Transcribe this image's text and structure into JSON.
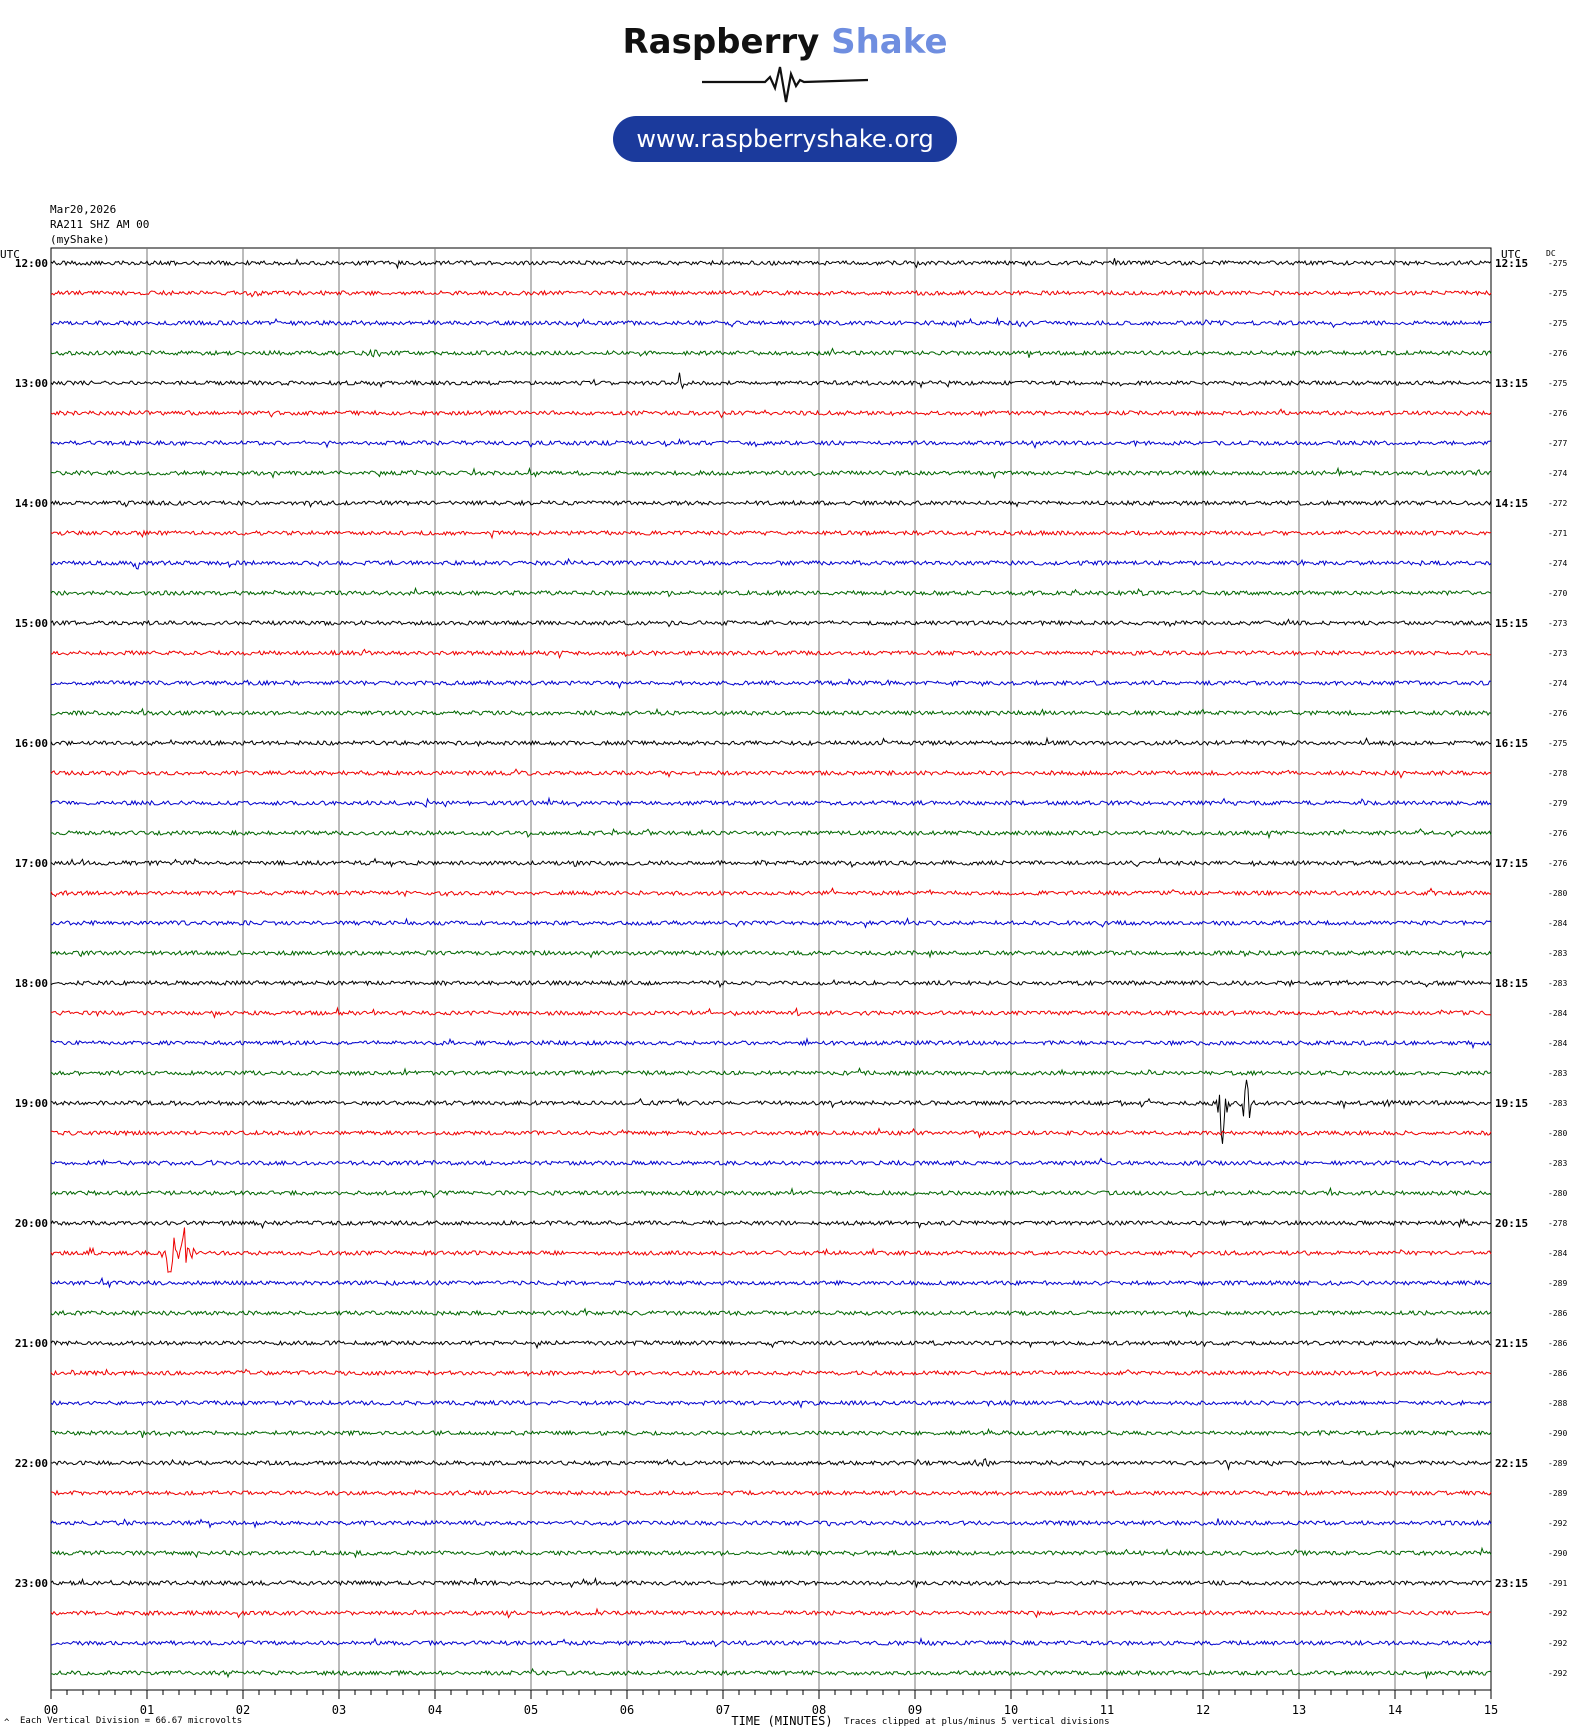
{
  "logo": {
    "brand_word1": "Raspberry",
    "brand_word2": "Shake",
    "url": "www.raspberryshake.org",
    "colors": {
      "dark": "#111111",
      "accent": "#6f8ee0",
      "pill": "#1b3a9c"
    }
  },
  "header": {
    "date": "Mar20,2026",
    "station": "RA211 SHZ AM 00",
    "source": "(myShake)"
  },
  "chart_data": {
    "type": "line",
    "left_axis_title": "UTC",
    "right_axis_title": "UTC",
    "dc_title": "DC",
    "xlabel": "TIME (MINUTES)",
    "xlim": [
      0,
      15
    ],
    "x_ticks": [
      "00",
      "01",
      "02",
      "03",
      "04",
      "05",
      "06",
      "07",
      "08",
      "09",
      "10",
      "11",
      "12",
      "13",
      "14",
      "15"
    ],
    "trace_colors": [
      "#000000",
      "#ee0000",
      "#0000cc",
      "#006600"
    ],
    "left_hour_labels": [
      "12:00",
      "13:00",
      "14:00",
      "15:00",
      "16:00",
      "17:00",
      "18:00",
      "19:00",
      "20:00",
      "21:00",
      "22:00",
      "23:00"
    ],
    "right_hour_labels": [
      "12:15",
      "13:15",
      "14:15",
      "15:15",
      "16:15",
      "17:15",
      "18:15",
      "19:15",
      "20:15",
      "21:15",
      "22:15",
      "23:15"
    ],
    "dc_offsets": [
      "-275",
      "-275",
      "-275",
      "-276",
      "-275",
      "-276",
      "-277",
      "-274",
      "-272",
      "-271",
      "-274",
      "-270",
      "-273",
      "-273",
      "-274",
      "-276",
      "-275",
      "-278",
      "-279",
      "-276",
      "-276",
      "-280",
      "-284",
      "-283",
      "-283",
      "-284",
      "-284",
      "-283",
      "-283",
      "-280",
      "-283",
      "-280",
      "-278",
      "-284",
      "-289",
      "-286",
      "-286",
      "-286",
      "-288",
      "-290",
      "-289",
      "-289",
      "-292",
      "-290",
      "-291",
      "-292",
      "-292",
      "-292"
    ],
    "events": [
      {
        "row": 1,
        "minute": 2.1,
        "amp": 0.25
      },
      {
        "row": 3,
        "minute": 3.35,
        "amp": 0.3
      },
      {
        "row": 4,
        "minute": 6.55,
        "amp": 0.35
      },
      {
        "row": 7,
        "minute": 3.8,
        "amp": 0.2
      },
      {
        "row": 10,
        "minute": 0.9,
        "amp": 0.2
      },
      {
        "row": 18,
        "minute": 3.9,
        "amp": 0.15
      },
      {
        "row": 28,
        "minute": 12.2,
        "amp": 1.6
      },
      {
        "row": 28,
        "minute": 12.45,
        "amp": 1.4
      },
      {
        "row": 28,
        "minute": 13.95,
        "amp": 0.3
      },
      {
        "row": 29,
        "minute": 6.95,
        "amp": 0.2
      },
      {
        "row": 33,
        "minute": 1.25,
        "amp": 1.7
      },
      {
        "row": 33,
        "minute": 1.4,
        "amp": 1.2
      },
      {
        "row": 32,
        "minute": 14.7,
        "amp": 0.4
      },
      {
        "row": 40,
        "minute": 9.7,
        "amp": 0.25
      },
      {
        "row": 40,
        "minute": 12.25,
        "amp": 0.3
      }
    ]
  },
  "footer": {
    "vertical_division": "Each Vertical Division =   66.67 microvolts",
    "clip_note": "Traces clipped at plus/minus 5 vertical divisions",
    "corner_mark": "^"
  }
}
